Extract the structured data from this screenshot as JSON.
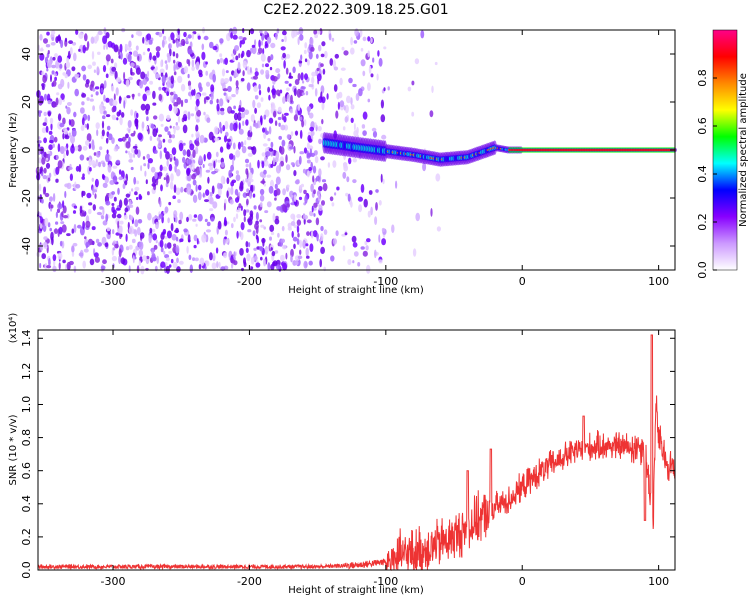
{
  "title": "C2E2.2022.309.18.25.G01",
  "chart_data": [
    {
      "type": "heatmap",
      "xlabel": "Height of straight line (km)",
      "ylabel": "Frequency (Hz)",
      "xlim": [
        -355,
        112
      ],
      "ylim": [
        -50,
        50
      ],
      "x_ticks": [
        -300,
        -200,
        -100,
        0,
        100
      ],
      "x_tick_labels": [
        "-300",
        "-200",
        "-100",
        "0",
        "100"
      ],
      "y_ticks": [
        -40,
        -20,
        0,
        20,
        40
      ],
      "y_tick_labels": [
        "-40",
        "-20",
        "0",
        "20",
        "40"
      ],
      "colorbar": {
        "label": "Normalized spectral amplitude",
        "range": [
          0,
          1
        ],
        "ticks": [
          0.0,
          0.2,
          0.4,
          0.6,
          0.8
        ],
        "tick_labels": [
          "0.0",
          "0.2",
          "0.4",
          "0.6",
          "0.8"
        ],
        "colors": [
          "#ffffff",
          "#cc99ff",
          "#8800ff",
          "#0000ff",
          "#00ffff",
          "#00ff00",
          "#ffff00",
          "#ff8800",
          "#ff0000",
          "#ff0088"
        ]
      },
      "features": {
        "noise_region_x": [
          -355,
          -100
        ],
        "signal_track_x": [
          -145,
          112
        ],
        "signal_track_freq_hz": [
          [
            -145,
            3
          ],
          [
            -120,
            1
          ],
          [
            -80,
            -2
          ],
          [
            -60,
            -4
          ],
          [
            -40,
            -3
          ],
          [
            -20,
            1
          ],
          [
            -10,
            0
          ],
          [
            0,
            0
          ],
          [
            112,
            0
          ]
        ]
      }
    },
    {
      "type": "line",
      "xlabel": "Height of straight line (km)",
      "ylabel": "SNR (10 * v/v)",
      "y_multiplier": "(x10⁴)",
      "xlim": [
        -355,
        112
      ],
      "ylim": [
        0,
        1.45
      ],
      "x_ticks": [
        -300,
        -200,
        -100,
        0,
        100
      ],
      "x_tick_labels": [
        "-300",
        "-200",
        "-100",
        "0",
        "100"
      ],
      "y_ticks": [
        0.0,
        0.2,
        0.4,
        0.6,
        0.8,
        1.0,
        1.2,
        1.4
      ],
      "y_tick_labels": [
        "0.0",
        "0.2",
        "0.4",
        "0.6",
        "0.8",
        "1.0",
        "1.2",
        "1.4"
      ],
      "color": "#ee3333",
      "series": [
        {
          "x": [
            -355,
            -300,
            -250,
            -200,
            -150,
            -120,
            -100,
            -90,
            -80,
            -70,
            -60,
            -50,
            -40,
            -30,
            -20,
            -10,
            0,
            10,
            20,
            30,
            40,
            50,
            60,
            70,
            80,
            88,
            90,
            92,
            94,
            96,
            98,
            100,
            105,
            112
          ],
          "y": [
            0.02,
            0.02,
            0.02,
            0.02,
            0.02,
            0.03,
            0.05,
            0.08,
            0.1,
            0.13,
            0.16,
            0.2,
            0.25,
            0.32,
            0.38,
            0.42,
            0.5,
            0.57,
            0.63,
            0.68,
            0.72,
            0.74,
            0.75,
            0.75,
            0.74,
            0.75,
            0.7,
            0.6,
            0.45,
            0.3,
            1.0,
            0.8,
            0.66,
            0.6
          ]
        }
      ],
      "peaks": [
        [
          -40,
          0.6
        ],
        [
          -23,
          0.73
        ],
        [
          45,
          0.93
        ],
        [
          95,
          1.42
        ],
        [
          90,
          0.3
        ]
      ]
    }
  ]
}
